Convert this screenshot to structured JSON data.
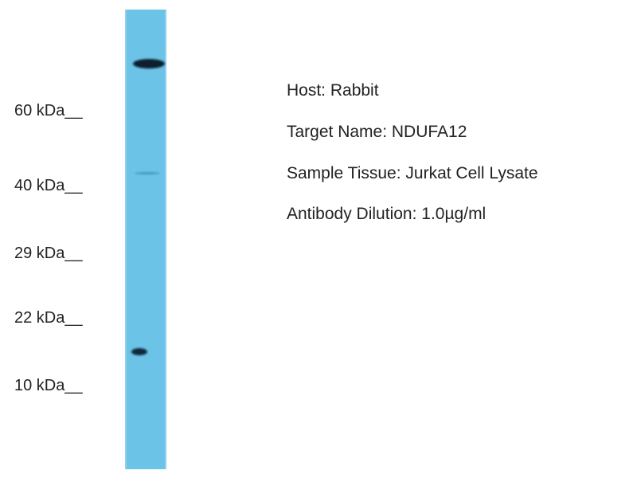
{
  "markers": [
    {
      "label": "60 kDa__"
    },
    {
      "label": "40 kDa__"
    },
    {
      "label": "29 kDa__"
    },
    {
      "label": "22 kDa__"
    },
    {
      "label": "10 kDa__"
    }
  ],
  "info": [
    {
      "text": "Host: Rabbit"
    },
    {
      "text": "Target Name: NDUFA12"
    },
    {
      "text": "Sample Tissue: Jurkat Cell Lysate"
    },
    {
      "text": "Antibody Dilution: 1.0µg/ml"
    }
  ],
  "colors": {
    "lane": "#6cc3e8",
    "band": "#0d1e2c"
  }
}
